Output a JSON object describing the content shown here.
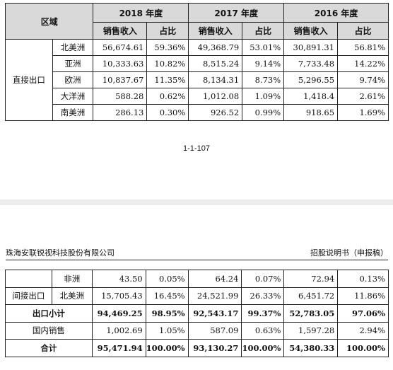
{
  "table1": {
    "header": {
      "region": "区域",
      "years": [
        "2018 年度",
        "2017 年度",
        "2016 年度"
      ],
      "sub_cols": [
        "销售收入",
        "占比",
        "销售收入",
        "占比",
        "销售收入",
        "占比"
      ]
    },
    "group_label": "直接出口",
    "rows": [
      {
        "name": "北美洲",
        "vals": [
          "56,674.61",
          "59.36%",
          "49,368.79",
          "53.01%",
          "30,891.31",
          "56.81%"
        ]
      },
      {
        "name": "亚洲",
        "vals": [
          "10,333.63",
          "10.82%",
          "8,515.24",
          "9.14%",
          "7,733.48",
          "14.22%"
        ]
      },
      {
        "name": "欧洲",
        "vals": [
          "10,837.67",
          "11.35%",
          "8,134.31",
          "8.73%",
          "5,296.55",
          "9.74%"
        ]
      },
      {
        "name": "大洋洲",
        "vals": [
          "588.28",
          "0.62%",
          "1,012.08",
          "1.09%",
          "1,418.4",
          "2.61%"
        ]
      },
      {
        "name": "南美洲",
        "vals": [
          "286.13",
          "0.30%",
          "926.52",
          "0.99%",
          "918.65",
          "1.69%"
        ]
      }
    ]
  },
  "page_number": "1-1-107",
  "page_header": {
    "left": "珠海安联锐视科技股份有限公司",
    "right": "招股说明书（申报稿）"
  },
  "table2": {
    "rows": [
      {
        "group": "",
        "name": "非洲",
        "vals": [
          "43.50",
          "0.05%",
          "64.24",
          "0.07%",
          "72.94",
          "0.13%"
        ]
      },
      {
        "group": "间接出口",
        "name": "北美洲",
        "vals": [
          "15,705.43",
          "16.45%",
          "24,521.99",
          "26.33%",
          "6,451.72",
          "11.86%"
        ]
      }
    ],
    "subtotal": {
      "label": "出口小计",
      "vals": [
        "94,469.25",
        "98.95%",
        "92,543.17",
        "99.37%",
        "52,783.05",
        "97.06%"
      ]
    },
    "domestic": {
      "label": "国内销售",
      "vals": [
        "1,002.69",
        "1.05%",
        "587.09",
        "0.63%",
        "1,597.28",
        "2.94%"
      ]
    },
    "total": {
      "label": "合计",
      "vals": [
        "95,471.94",
        "100.00%",
        "93,130.27",
        "100.00%",
        "54,380.33",
        "100.00%"
      ]
    }
  }
}
